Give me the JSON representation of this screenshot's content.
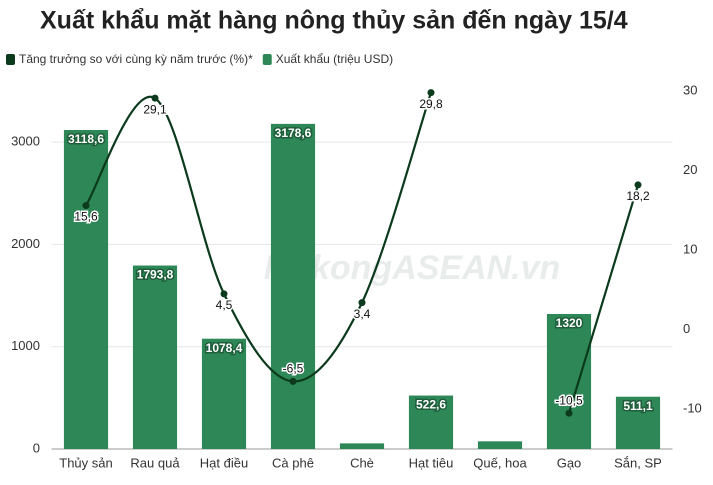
{
  "chart_data": {
    "type": "bar-line",
    "title": "Xuất khẩu mặt hàng nông thủy sản đến ngày 15/4",
    "watermark": "MekongASEAN.vn",
    "categories": [
      "Thủy sản",
      "Rau quả",
      "Hạt điều",
      "Cà phê",
      "Chè",
      "Hạt tiêu",
      "Quế, hoa",
      "Gạo",
      "Sắn, SP"
    ],
    "series": [
      {
        "name": "Tăng trưởng so với cùng kỳ năm trước (%)*",
        "type": "line",
        "axis": "y2",
        "color": "#0b3a1c",
        "values": [
          15.6,
          29.1,
          4.5,
          -6.5,
          3.4,
          29.8,
          null,
          -10.5,
          18.2
        ],
        "value_labels": [
          "15,6",
          "29,1",
          "4,5",
          "-6,5",
          "3,4",
          "29,8",
          null,
          "-10,5",
          "18,2"
        ]
      },
      {
        "name": "Xuất khẩu (triệu USD)",
        "type": "bar",
        "color": "#2e8757",
        "values": [
          3118.6,
          1793.8,
          1078.4,
          3178.6,
          55,
          522.6,
          75,
          1320,
          511.1
        ],
        "value_labels": [
          "3118,6",
          "1793,8",
          "1078,4",
          "3178,6",
          null,
          "522,6",
          null,
          "1320",
          "511,1"
        ]
      }
    ],
    "ylim": [
      0,
      3500
    ],
    "yticks": [
      0,
      1000,
      2000,
      3000
    ],
    "y2lim": [
      -15,
      30
    ],
    "y2ticks": [
      -10,
      0,
      10,
      20,
      30
    ],
    "grid": true
  }
}
